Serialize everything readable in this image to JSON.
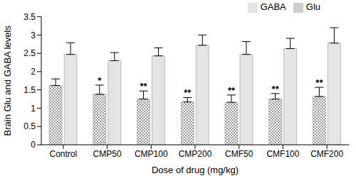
{
  "chart_data": {
    "type": "bar",
    "x_label": "Dose of drug (mg/kg)",
    "y_label": "Brain Glu and GABA levels",
    "categories": [
      "Control",
      "CMP50",
      "CMP100",
      "CMP200",
      "CMF50",
      "CMF100",
      "CMF200"
    ],
    "series": [
      {
        "name": "Glu",
        "color": "#9a9a9a",
        "marker": "checkered",
        "values": [
          1.62,
          1.38,
          1.25,
          1.17,
          1.16,
          1.25,
          1.32
        ],
        "errors": [
          0.18,
          0.25,
          0.22,
          0.12,
          0.2,
          0.15,
          0.25
        ],
        "annotations": [
          null,
          "*",
          "**",
          "**",
          "**",
          "**",
          "**"
        ]
      },
      {
        "name": "GABA",
        "color": "#e4e4e4",
        "values": [
          2.47,
          2.3,
          2.43,
          2.72,
          2.47,
          2.63,
          2.78
        ],
        "errors": [
          0.32,
          0.22,
          0.22,
          0.28,
          0.35,
          0.28,
          0.42
        ]
      }
    ],
    "ylim": [
      0,
      3.5
    ],
    "yticks": [
      0,
      0.5,
      1,
      1.5,
      2,
      2.5,
      3,
      3.5
    ],
    "grid": false,
    "legend": "upper right"
  }
}
